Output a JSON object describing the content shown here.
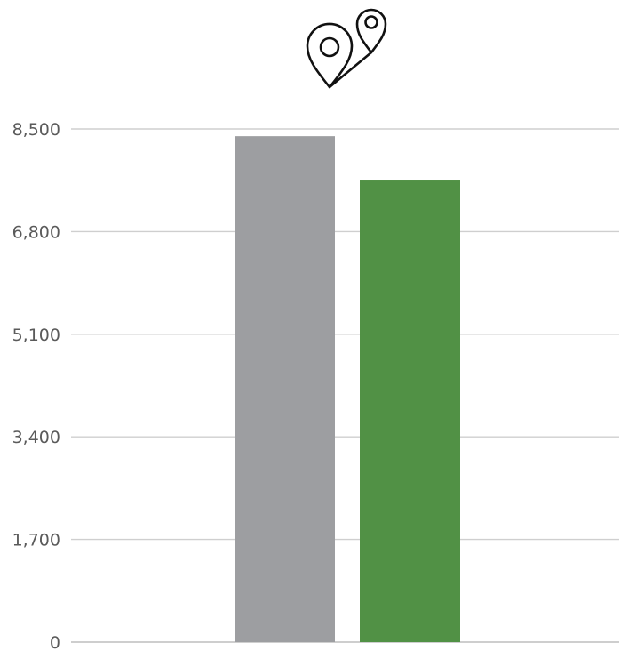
{
  "chart_data": {
    "type": "bar",
    "title": "",
    "xlabel": "",
    "ylabel": "",
    "ylim": [
      0,
      8500
    ],
    "yticks": [
      0,
      1700,
      3400,
      5100,
      6800,
      8500
    ],
    "ytick_labels": [
      "0",
      "1,700",
      "3,400",
      "5,100",
      "6,800",
      "8,500"
    ],
    "grid": "horizontal",
    "legend": "none",
    "header_icon": "two-location-pins-icon",
    "categories": [
      ""
    ],
    "series": [
      {
        "values": [
          8380
        ],
        "color": "#9d9ea1"
      },
      {
        "values": [
          7660
        ],
        "color": "#519145"
      }
    ]
  },
  "colors": {
    "grid": "#cfcfcf",
    "axis": "#bdbdbd",
    "tick_text": "#5a5a5a"
  }
}
